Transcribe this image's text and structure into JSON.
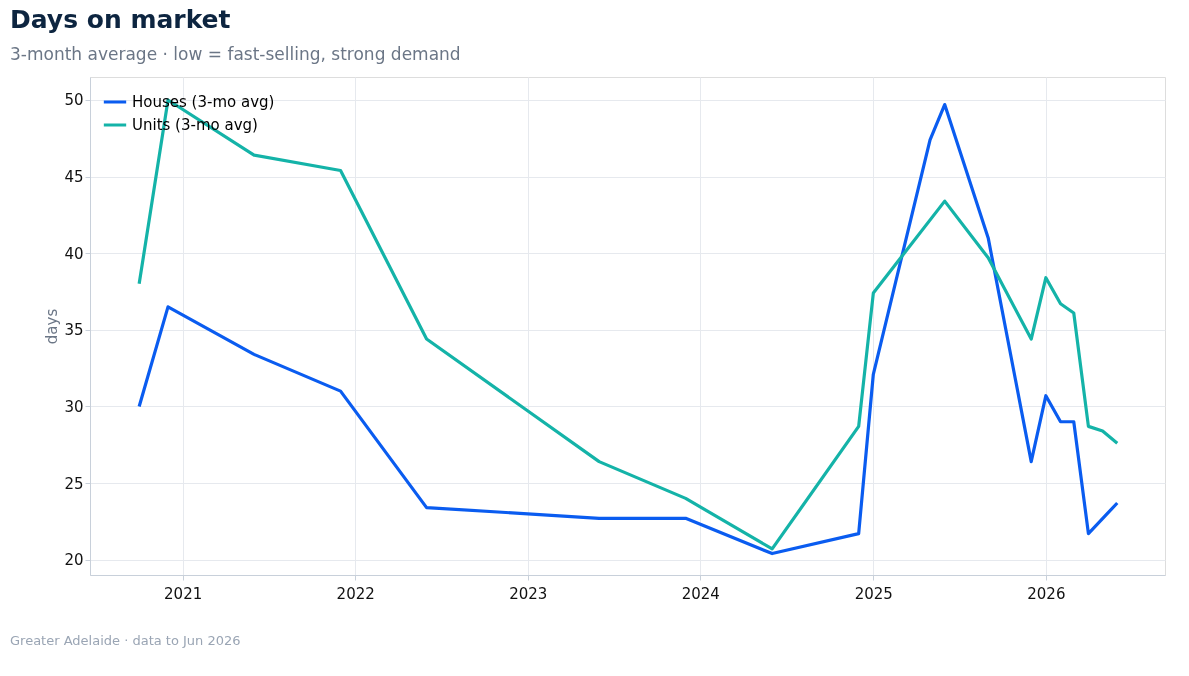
{
  "chart_data": {
    "type": "line",
    "title": "Days on market",
    "subtitle": "3-month average · low = fast-selling, strong demand",
    "ylabel": "days",
    "x": [
      "2020-10",
      "2020-12",
      "2021-06",
      "2021-12",
      "2022-06",
      "2023-06",
      "2023-12",
      "2024-06",
      "2024-12",
      "2025-01",
      "2025-05",
      "2025-06",
      "2025-09",
      "2025-12",
      "2026-01",
      "2026-02",
      "2026-03",
      "2026-04",
      "2026-05",
      "2026-06"
    ],
    "series": [
      {
        "name": "Houses (3-mo avg)",
        "color": "#0a5cf0",
        "values": [
          30.0,
          36.5,
          33.4,
          31.0,
          23.4,
          22.7,
          22.7,
          20.4,
          21.7,
          32.1,
          47.4,
          49.7,
          41.0,
          26.4,
          30.7,
          29.0,
          29.0,
          21.7,
          null,
          23.7
        ]
      },
      {
        "name": "Units (3-mo avg)",
        "color": "#14b3a8",
        "values": [
          38.0,
          50.0,
          46.4,
          45.4,
          34.4,
          26.4,
          24.0,
          20.7,
          28.7,
          37.4,
          null,
          43.4,
          39.7,
          34.4,
          38.4,
          36.7,
          36.1,
          28.7,
          28.4,
          27.6
        ]
      }
    ],
    "xlim": [
      "2020-06-19",
      "2026-09-10"
    ],
    "xticks": [
      "2021",
      "2022",
      "2023",
      "2024",
      "2025",
      "2026"
    ],
    "ylim": [
      19,
      51.5
    ],
    "yticks": [
      20,
      25,
      30,
      35,
      40,
      45,
      50
    ],
    "grid": true,
    "legend": "top left",
    "line_style": "solid",
    "marker": "none",
    "annotations": [
      "Greater Adelaide  ·  data to Jun 2026"
    ]
  }
}
